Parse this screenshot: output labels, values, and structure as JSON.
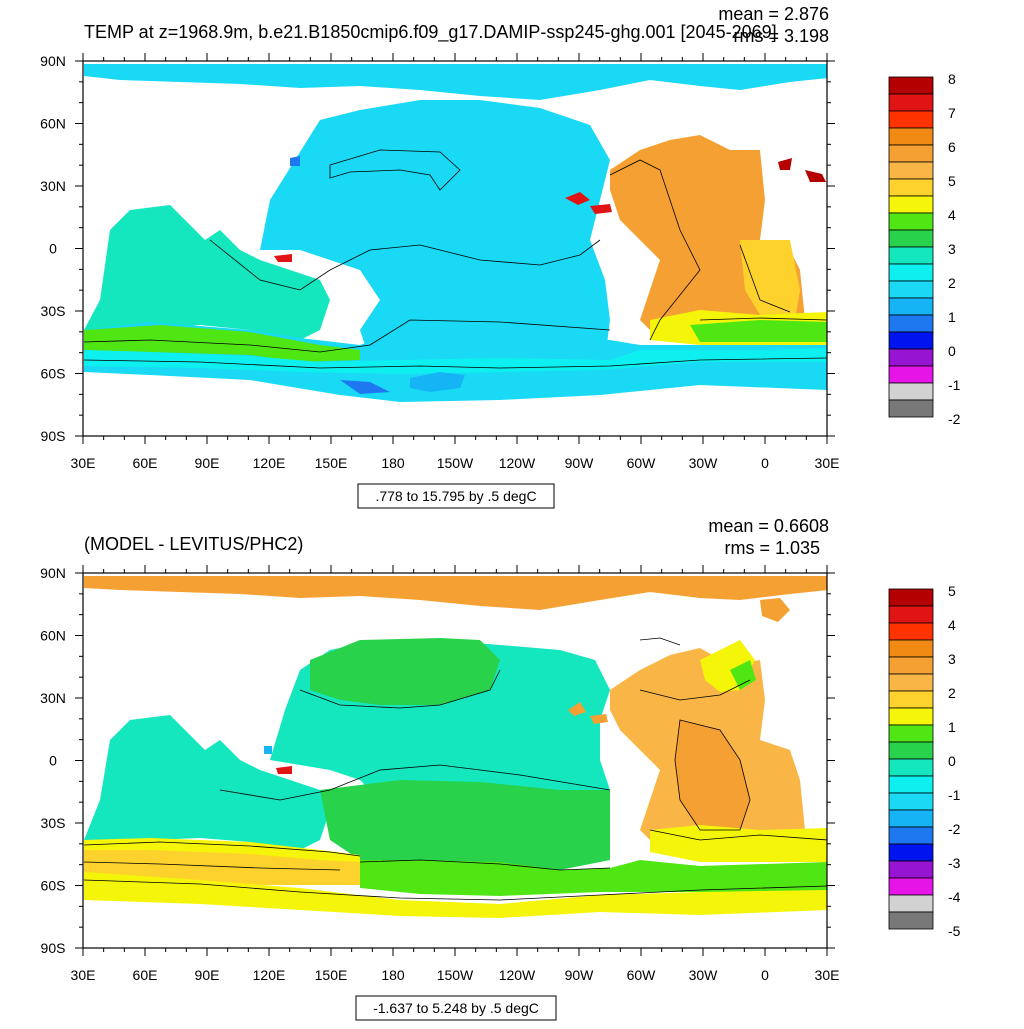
{
  "top_panel": {
    "title": "TEMP at z=1968.9m, b.e21.B1850cmip6.f09_g17.DAMIP-ssp245-ghg.001 [2045-2069]",
    "mean_text": "mean = 2.876",
    "rms_text": "rms = 3.198",
    "contour_info": ".778 to 15.795 by .5 degC",
    "colorbar_labels": [
      "8",
      "7",
      "6",
      "5",
      "4",
      "3",
      "2",
      "1",
      "0",
      "-1",
      "-2"
    ]
  },
  "bottom_panel": {
    "title": "(MODEL - LEVITUS/PHC2)",
    "mean_text": "mean = 0.6608",
    "rms_text": "rms = 1.035",
    "contour_info": "-1.637 to 5.248 by .5 degC",
    "colorbar_labels": [
      "5",
      "4",
      "3",
      "2",
      "1",
      "0",
      "-1",
      "-2",
      "-3",
      "-4",
      "-5"
    ]
  },
  "lat_labels": [
    "90N",
    "60N",
    "30N",
    "0",
    "30S",
    "60S",
    "90S"
  ],
  "lon_labels": [
    "30E",
    "60E",
    "90E",
    "120E",
    "150E",
    "180",
    "150W",
    "120W",
    "90W",
    "60W",
    "30W",
    "0",
    "30E"
  ],
  "colorbar_colors": [
    "#b40000",
    "#e01414",
    "#ff3200",
    "#f08a14",
    "#f5a032",
    "#f9b646",
    "#fdd22d",
    "#f5f50a",
    "#50e614",
    "#28d24b",
    "#14e6be",
    "#0ef0f0",
    "#19d9f5",
    "#14b4f5",
    "#1e78f0",
    "#0014f0",
    "#9614d2",
    "#e614e6",
    "#d2d2d2",
    "#787878"
  ]
}
